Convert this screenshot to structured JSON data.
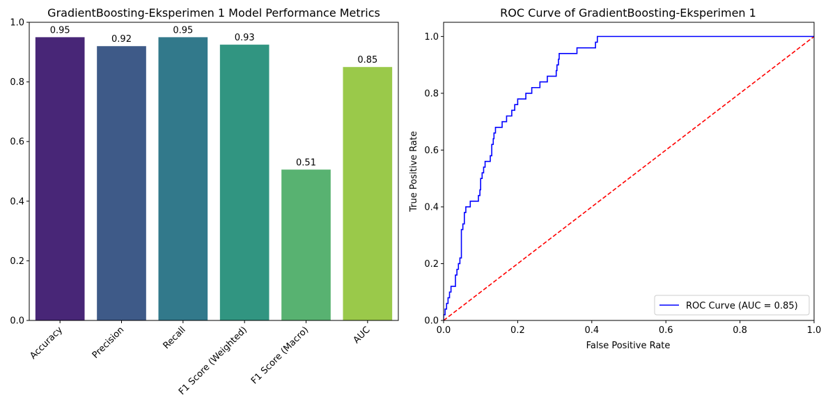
{
  "chart_data": [
    {
      "type": "bar",
      "title": "GradientBoosting-Eksperimen 1 Model Performance Metrics",
      "xlabel": "",
      "ylabel": "",
      "categories": [
        "Accuracy",
        "Precision",
        "Recall",
        "F1 Score (Weighted)",
        "F1 Score (Macro)",
        "AUC"
      ],
      "values": [
        0.95,
        0.92,
        0.95,
        0.925,
        0.506,
        0.85
      ],
      "data_labels": [
        "0.95",
        "0.92",
        "0.95",
        "0.93",
        "0.51",
        "0.85"
      ],
      "colors": [
        "#482677",
        "#3e5a88",
        "#32798b",
        "#319581",
        "#58b271",
        "#9ac94a"
      ],
      "ylim": [
        0,
        1.0
      ],
      "yticks": [
        0.0,
        0.2,
        0.4,
        0.6,
        0.8,
        1.0
      ],
      "ytick_labels": [
        "0.0",
        "0.2",
        "0.4",
        "0.6",
        "0.8",
        "1.0"
      ],
      "xtick_rotation": 45,
      "grid": false
    },
    {
      "type": "line",
      "title": "ROC Curve of GradientBoosting-Eksperimen 1",
      "xlabel": "False Positive Rate",
      "ylabel": "True Positive Rate",
      "xlim": [
        0,
        1.0
      ],
      "ylim": [
        0,
        1.05
      ],
      "xticks": [
        0.0,
        0.2,
        0.4,
        0.6,
        0.8,
        1.0
      ],
      "xtick_labels": [
        "0.0",
        "0.2",
        "0.4",
        "0.6",
        "0.8",
        "1.0"
      ],
      "yticks": [
        0.0,
        0.2,
        0.4,
        0.6,
        0.8,
        1.0
      ],
      "ytick_labels": [
        "0.0",
        "0.2",
        "0.4",
        "0.6",
        "0.8",
        "1.0"
      ],
      "legend_position": "lower-right",
      "grid": false,
      "series": [
        {
          "name": "ROC Curve (AUC = 0.85)",
          "color": "#0000ff",
          "style": "solid",
          "x": [
            0,
            0,
            0.004,
            0.004,
            0.008,
            0.008,
            0.012,
            0.012,
            0.016,
            0.016,
            0.02,
            0.02,
            0.024,
            0.024,
            0.032,
            0.032,
            0.036,
            0.036,
            0.04,
            0.04,
            0.044,
            0.044,
            0.048,
            0.048,
            0.052,
            0.052,
            0.056,
            0.056,
            0.06,
            0.06,
            0.068,
            0.068,
            0.072,
            0.072,
            0.094,
            0.094,
            0.098,
            0.098,
            0.1,
            0.1,
            0.104,
            0.104,
            0.108,
            0.108,
            0.112,
            0.112,
            0.118,
            0.118,
            0.126,
            0.126,
            0.13,
            0.13,
            0.134,
            0.134,
            0.136,
            0.136,
            0.14,
            0.14,
            0.158,
            0.158,
            0.17,
            0.17,
            0.184,
            0.184,
            0.192,
            0.192,
            0.2,
            0.2,
            0.212,
            0.212,
            0.222,
            0.222,
            0.238,
            0.238,
            0.26,
            0.26,
            0.28,
            0.28,
            0.304,
            0.304,
            0.306,
            0.306,
            0.308,
            0.308,
            0.31,
            0.31,
            0.312,
            0.312,
            0.36,
            0.36,
            0.4,
            0.4,
            0.41,
            0.41,
            0.415,
            0.415,
            0.54,
            0.54,
            0.63,
            0.63,
            1.0
          ],
          "y": [
            0,
            0.02,
            0.02,
            0.04,
            0.04,
            0.06,
            0.06,
            0.08,
            0.08,
            0.1,
            0.1,
            0.12,
            0.12,
            0.12,
            0.12,
            0.16,
            0.16,
            0.18,
            0.18,
            0.2,
            0.2,
            0.22,
            0.22,
            0.32,
            0.32,
            0.34,
            0.34,
            0.38,
            0.38,
            0.4,
            0.4,
            0.4,
            0.4,
            0.42,
            0.42,
            0.44,
            0.44,
            0.46,
            0.46,
            0.5,
            0.5,
            0.52,
            0.52,
            0.54,
            0.54,
            0.56,
            0.56,
            0.56,
            0.56,
            0.58,
            0.58,
            0.62,
            0.62,
            0.64,
            0.64,
            0.66,
            0.66,
            0.68,
            0.68,
            0.7,
            0.7,
            0.72,
            0.72,
            0.74,
            0.74,
            0.76,
            0.76,
            0.78,
            0.78,
            0.78,
            0.78,
            0.8,
            0.8,
            0.82,
            0.82,
            0.84,
            0.84,
            0.86,
            0.86,
            0.88,
            0.88,
            0.9,
            0.9,
            0.9,
            0.9,
            0.92,
            0.92,
            0.94,
            0.94,
            0.96,
            0.96,
            0.96,
            0.96,
            0.98,
            0.98,
            1.0,
            1.0,
            1.0,
            1.0,
            1.0,
            1.0
          ]
        },
        {
          "name": "",
          "color": "#ff0000",
          "style": "dashed",
          "x": [
            0,
            1
          ],
          "y": [
            0,
            1
          ]
        }
      ]
    }
  ]
}
